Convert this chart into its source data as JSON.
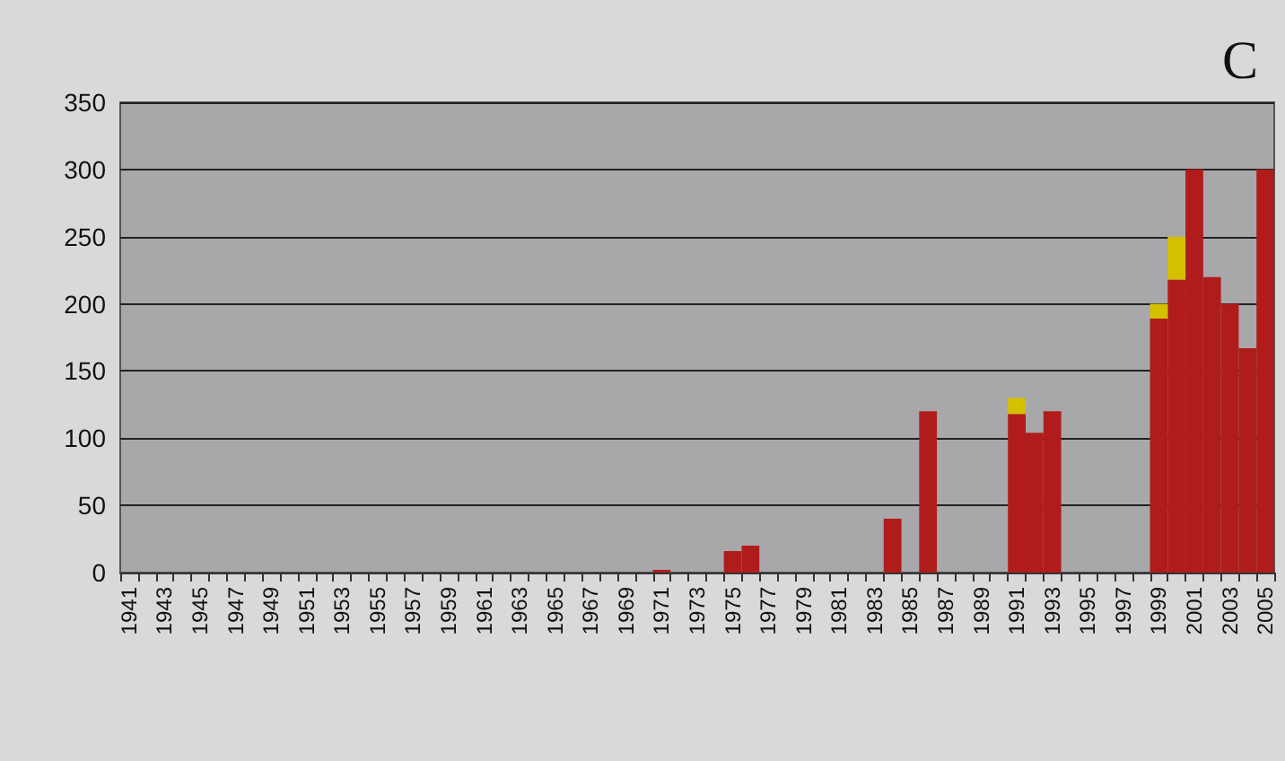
{
  "chart_data": {
    "type": "bar",
    "title": "C",
    "stacked": true,
    "grid": "y",
    "categories": [
      "1941",
      null,
      "1943",
      null,
      "1945",
      null,
      "1947",
      null,
      "1949",
      null,
      "1951",
      null,
      "1953",
      null,
      "1955",
      null,
      "1957",
      null,
      "1959",
      null,
      "1961",
      null,
      "1963",
      null,
      "1965",
      null,
      "1967",
      null,
      "1969",
      null,
      "1971",
      null,
      "1973",
      null,
      "1975",
      null,
      "1977",
      null,
      "1979",
      null,
      "1981",
      null,
      "1983",
      null,
      "1985",
      null,
      "1987",
      null,
      "1989",
      null,
      "1991",
      null,
      "1993",
      null,
      "1995",
      null,
      "1997",
      null,
      "1999",
      null,
      "2001",
      null,
      "2003",
      null,
      "2005"
    ],
    "series": [
      {
        "color": "#b01c1c",
        "values": [
          0,
          0,
          0,
          0,
          0,
          0,
          0,
          0,
          0,
          0,
          0,
          0,
          0,
          0,
          0,
          0,
          0,
          0,
          0,
          0,
          0,
          0,
          0,
          0,
          0,
          0,
          0,
          0,
          0,
          0,
          2,
          0,
          0,
          0,
          16,
          20,
          0,
          0,
          0,
          0,
          0,
          0,
          0,
          40,
          0,
          120,
          0,
          0,
          0,
          0,
          118,
          104,
          120,
          0,
          0,
          0,
          0,
          0,
          189,
          218,
          300,
          220,
          200,
          167,
          300
        ]
      },
      {
        "color": "#d4c000",
        "values": [
          0,
          0,
          0,
          0,
          0,
          0,
          0,
          0,
          0,
          0,
          0,
          0,
          0,
          0,
          0,
          0,
          0,
          0,
          0,
          0,
          0,
          0,
          0,
          0,
          0,
          0,
          0,
          0,
          0,
          0,
          0,
          0,
          0,
          0,
          0,
          0,
          0,
          0,
          0,
          0,
          0,
          0,
          0,
          0,
          0,
          0,
          0,
          0,
          0,
          0,
          12,
          0,
          0,
          0,
          0,
          0,
          0,
          0,
          11,
          32,
          0,
          0,
          0,
          0,
          0
        ]
      }
    ],
    "ylim": [
      0,
      350
    ],
    "yticks": [
      0,
      50,
      100,
      150,
      200,
      250,
      300,
      350
    ]
  }
}
